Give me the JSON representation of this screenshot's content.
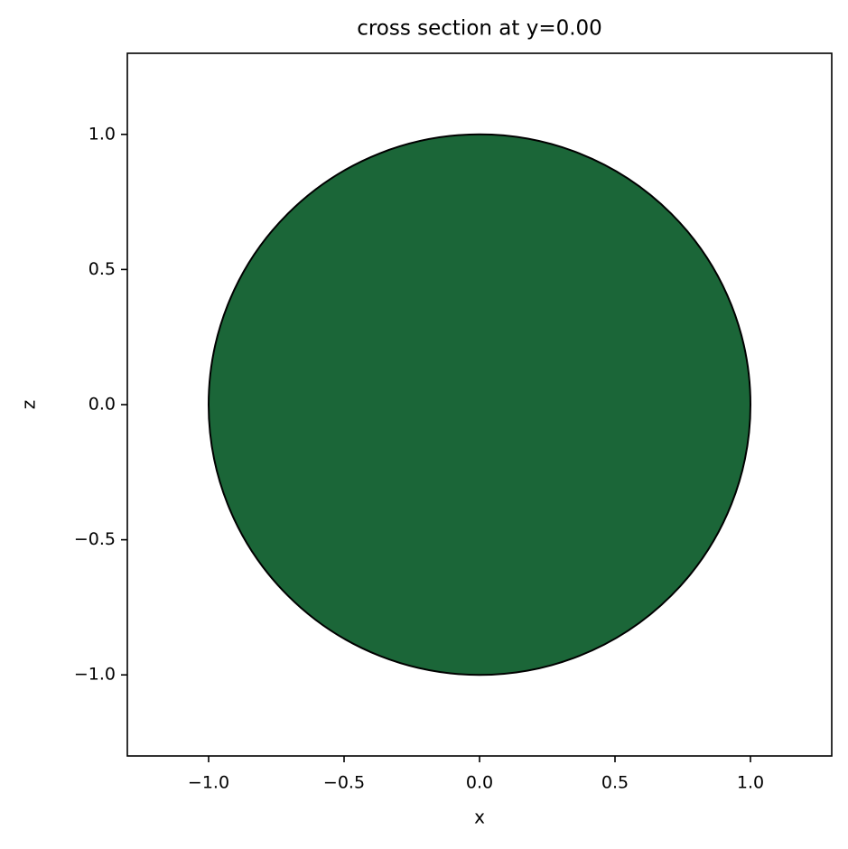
{
  "chart_data": {
    "type": "patch",
    "title": "cross section at y=0.00",
    "x_label": "x",
    "y_label": "z",
    "center": [
      0,
      0
    ],
    "radius": 1,
    "color": "#1b6638",
    "edgecolor": "#000000",
    "xlim": [
      -1.3,
      1.3
    ],
    "ylim": [
      -1.3,
      1.3
    ],
    "xticks": [
      {
        "value": -1,
        "label": "−1.0"
      },
      {
        "value": -0.5,
        "label": "−0.5"
      },
      {
        "value": 0,
        "label": "0.0"
      },
      0.5,
      {
        "value": 1,
        "label": "1.0"
      }
    ],
    "yticks": [
      {
        "value": -1,
        "label": "−1.0"
      },
      {
        "value": -0.5,
        "label": "−0.5"
      },
      {
        "value": 0,
        "label": "0.0"
      },
      0.5,
      {
        "value": 1,
        "label": "1.0"
      }
    ]
  }
}
